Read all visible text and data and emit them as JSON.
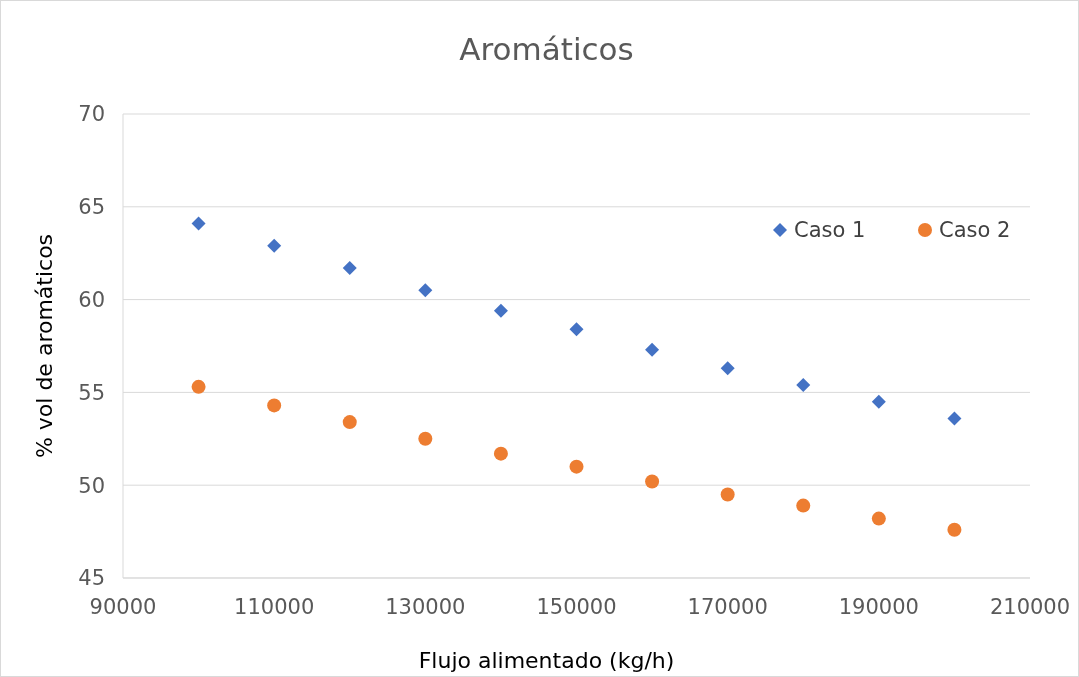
{
  "chart_data": {
    "type": "scatter",
    "title": "Aromáticos",
    "xlabel": "Flujo alimentado (kg/h)",
    "ylabel": "% vol de aromáticos",
    "x": [
      100000,
      110000,
      120000,
      130000,
      140000,
      150000,
      160000,
      170000,
      180000,
      190000,
      200000
    ],
    "series": [
      {
        "name": "Caso 1",
        "color": "#4472c4",
        "marker": "diamond",
        "values": [
          64.1,
          62.9,
          61.7,
          60.5,
          59.4,
          58.4,
          57.3,
          56.3,
          55.4,
          54.5,
          53.6
        ]
      },
      {
        "name": "Caso 2",
        "color": "#ed7d31",
        "marker": "circle",
        "values": [
          55.3,
          54.3,
          53.4,
          52.5,
          51.7,
          51.0,
          50.2,
          49.5,
          48.9,
          48.2,
          47.6
        ]
      }
    ],
    "xlim": [
      90000,
      210000
    ],
    "xticks": [
      90000,
      110000,
      130000,
      150000,
      170000,
      190000,
      210000
    ],
    "ylim": [
      45,
      70
    ],
    "yticks": [
      45,
      50,
      55,
      60,
      65,
      70
    ],
    "grid": "y",
    "legend": "top right"
  }
}
